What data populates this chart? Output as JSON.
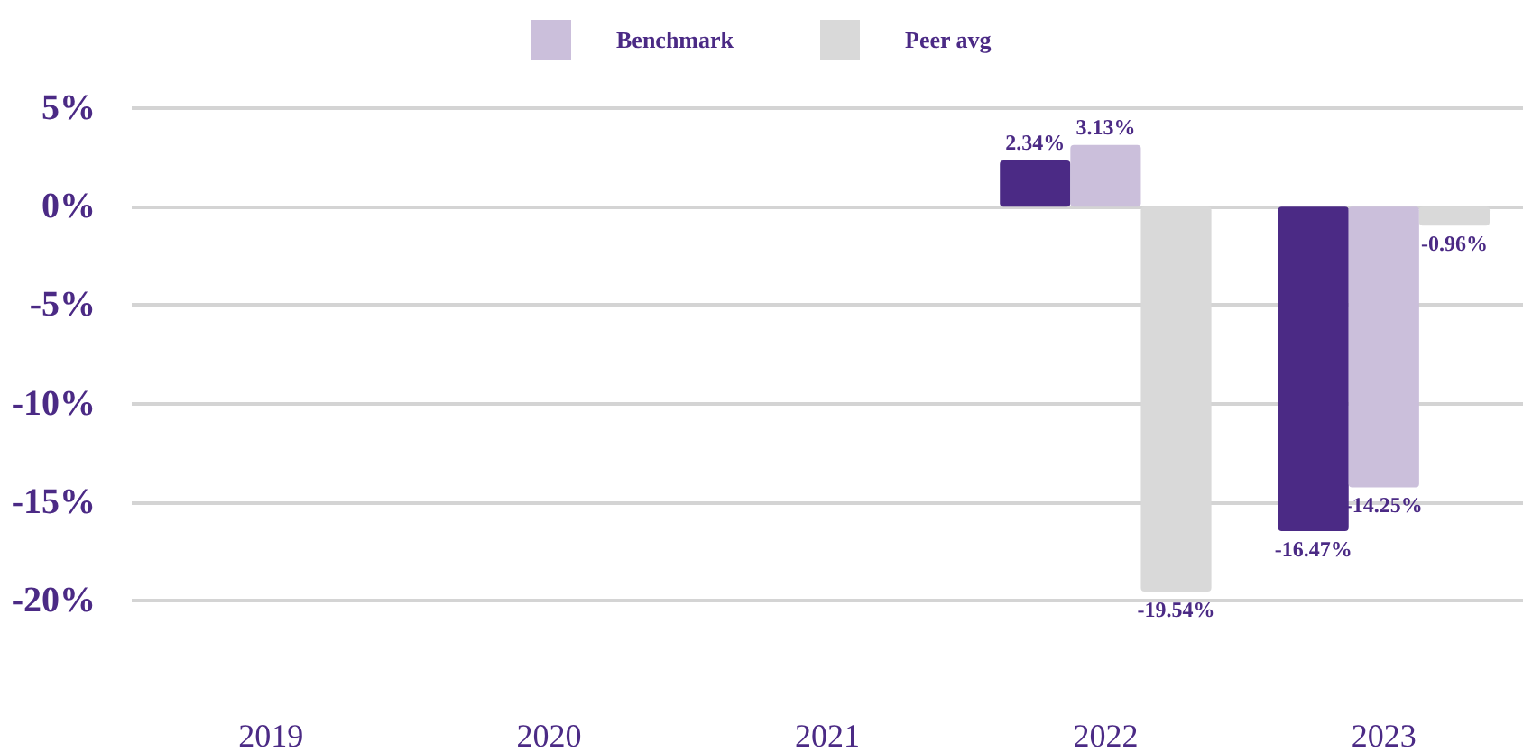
{
  "chart_data": {
    "type": "bar",
    "categories": [
      "2019",
      "2020",
      "2021",
      "2022",
      "2023"
    ],
    "series": [
      {
        "color": "#4b2a85",
        "values": [
          null,
          null,
          null,
          2.34,
          -16.47
        ],
        "value_labels": [
          null,
          null,
          null,
          "2.34%",
          "-16.47%"
        ]
      },
      {
        "name": "Benchmark",
        "color": "#cbbfdb",
        "values": [
          null,
          null,
          null,
          3.13,
          -14.25
        ],
        "value_labels": [
          null,
          null,
          null,
          "3.13%",
          "-14.25%"
        ]
      },
      {
        "name": "Peer avg",
        "color": "#d9d9d9",
        "values": [
          null,
          null,
          null,
          -19.54,
          -0.96
        ],
        "value_labels": [
          null,
          null,
          null,
          "-19.54%",
          "-0.96%"
        ]
      }
    ],
    "ylim": [
      -20,
      5
    ],
    "yticks": [
      {
        "value": 5,
        "label": "5%"
      },
      {
        "value": 0,
        "label": "0%"
      },
      {
        "value": -5,
        "label": "-5%"
      },
      {
        "value": -10,
        "label": "-10%"
      },
      {
        "value": -15,
        "label": "-15%"
      },
      {
        "value": -20,
        "label": "-20%"
      }
    ],
    "grid": "y",
    "legend": "top"
  }
}
